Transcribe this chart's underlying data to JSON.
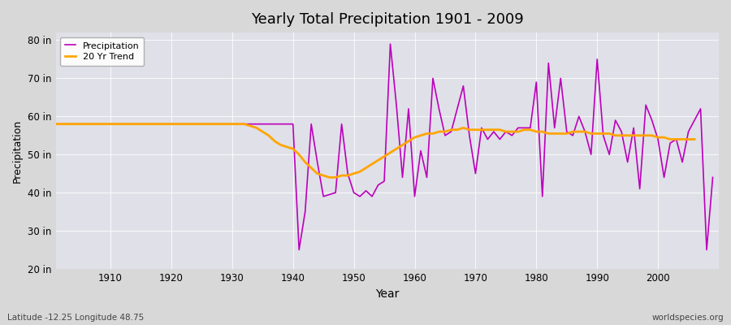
{
  "title": "Yearly Total Precipitation 1901 - 2009",
  "xlabel": "Year",
  "ylabel": "Precipitation",
  "fig_bg_color": "#d8d8d8",
  "plot_bg_color": "#e0e0e8",
  "precip_color": "#bb00bb",
  "trend_color": "#ffa500",
  "ylim": [
    20,
    82
  ],
  "yticks": [
    20,
    30,
    40,
    50,
    60,
    70,
    80
  ],
  "ytick_labels": [
    "20 in",
    "30 in",
    "40 in",
    "50 in",
    "60 in",
    "70 in",
    "80 in"
  ],
  "xlim": [
    1901,
    2010
  ],
  "xticks": [
    1910,
    1920,
    1930,
    1940,
    1950,
    1960,
    1970,
    1980,
    1990,
    2000
  ],
  "years": [
    1901,
    1902,
    1903,
    1904,
    1905,
    1906,
    1907,
    1908,
    1909,
    1910,
    1911,
    1912,
    1913,
    1914,
    1915,
    1916,
    1917,
    1918,
    1919,
    1920,
    1921,
    1922,
    1923,
    1924,
    1925,
    1926,
    1927,
    1928,
    1929,
    1930,
    1931,
    1932,
    1933,
    1934,
    1935,
    1936,
    1937,
    1938,
    1939,
    1940,
    1941,
    1942,
    1943,
    1944,
    1945,
    1946,
    1947,
    1948,
    1949,
    1950,
    1951,
    1952,
    1953,
    1954,
    1955,
    1956,
    1957,
    1958,
    1959,
    1960,
    1961,
    1962,
    1963,
    1964,
    1965,
    1966,
    1967,
    1968,
    1969,
    1970,
    1971,
    1972,
    1973,
    1974,
    1975,
    1976,
    1977,
    1978,
    1979,
    1980,
    1981,
    1982,
    1983,
    1984,
    1985,
    1986,
    1987,
    1988,
    1989,
    1990,
    1991,
    1992,
    1993,
    1994,
    1995,
    1996,
    1997,
    1998,
    1999,
    2000,
    2001,
    2002,
    2003,
    2004,
    2005,
    2006,
    2007,
    2008,
    2009
  ],
  "precip": [
    58.0,
    58.0,
    58.0,
    58.0,
    58.0,
    58.0,
    58.0,
    58.0,
    58.0,
    58.0,
    58.0,
    58.0,
    58.0,
    58.0,
    58.0,
    58.0,
    58.0,
    58.0,
    58.0,
    58.0,
    58.0,
    58.0,
    58.0,
    58.0,
    58.0,
    58.0,
    58.0,
    58.0,
    58.0,
    58.0,
    58.0,
    58.0,
    58.0,
    58.0,
    58.0,
    58.0,
    58.0,
    58.0,
    58.0,
    58.0,
    25.0,
    35.0,
    58.0,
    48.0,
    39.0,
    39.5,
    40.0,
    58.0,
    45.0,
    40.0,
    39.0,
    40.5,
    39.0,
    42.0,
    43.0,
    79.0,
    63.0,
    44.0,
    62.0,
    39.0,
    51.0,
    44.0,
    70.0,
    62.0,
    55.0,
    56.0,
    62.0,
    68.0,
    55.0,
    45.0,
    57.0,
    54.0,
    56.0,
    54.0,
    56.0,
    55.0,
    57.0,
    57.0,
    57.0,
    69.0,
    39.0,
    74.0,
    57.0,
    70.0,
    56.0,
    55.0,
    60.0,
    56.0,
    50.0,
    75.0,
    55.0,
    50.0,
    59.0,
    56.0,
    48.0,
    57.0,
    41.0,
    63.0,
    59.0,
    54.0,
    44.0,
    53.0,
    54.0,
    48.0,
    56.0,
    59.0,
    62.0,
    25.0,
    44.0
  ],
  "trend": [
    58.0,
    58.0,
    58.0,
    58.0,
    58.0,
    58.0,
    58.0,
    58.0,
    58.0,
    58.0,
    58.0,
    58.0,
    58.0,
    58.0,
    58.0,
    58.0,
    58.0,
    58.0,
    58.0,
    58.0,
    58.0,
    58.0,
    58.0,
    58.0,
    58.0,
    58.0,
    58.0,
    58.0,
    58.0,
    58.0,
    58.0,
    58.0,
    57.5,
    57.0,
    56.0,
    55.0,
    53.5,
    52.5,
    52.0,
    51.5,
    50.0,
    48.0,
    46.5,
    45.0,
    44.5,
    44.0,
    44.0,
    44.5,
    44.5,
    45.0,
    45.5,
    46.5,
    47.5,
    48.5,
    49.5,
    50.5,
    51.5,
    52.5,
    53.5,
    54.5,
    55.0,
    55.5,
    55.5,
    56.0,
    56.0,
    56.5,
    56.5,
    57.0,
    56.5,
    56.5,
    56.5,
    56.5,
    56.5,
    56.5,
    56.0,
    56.0,
    56.0,
    56.5,
    56.5,
    56.0,
    56.0,
    55.5,
    55.5,
    55.5,
    55.5,
    56.0,
    56.0,
    56.0,
    55.5,
    55.5,
    55.5,
    55.5,
    55.0,
    55.0,
    55.0,
    55.0,
    55.0,
    55.0,
    55.0,
    54.5,
    54.5,
    54.0,
    54.0,
    54.0,
    54.0,
    54.0,
    null,
    null,
    null
  ],
  "footer_left": "Latitude -12.25 Longitude 48.75",
  "footer_right": "worldspecies.org",
  "legend_precip": "Precipitation",
  "legend_trend": "20 Yr Trend"
}
